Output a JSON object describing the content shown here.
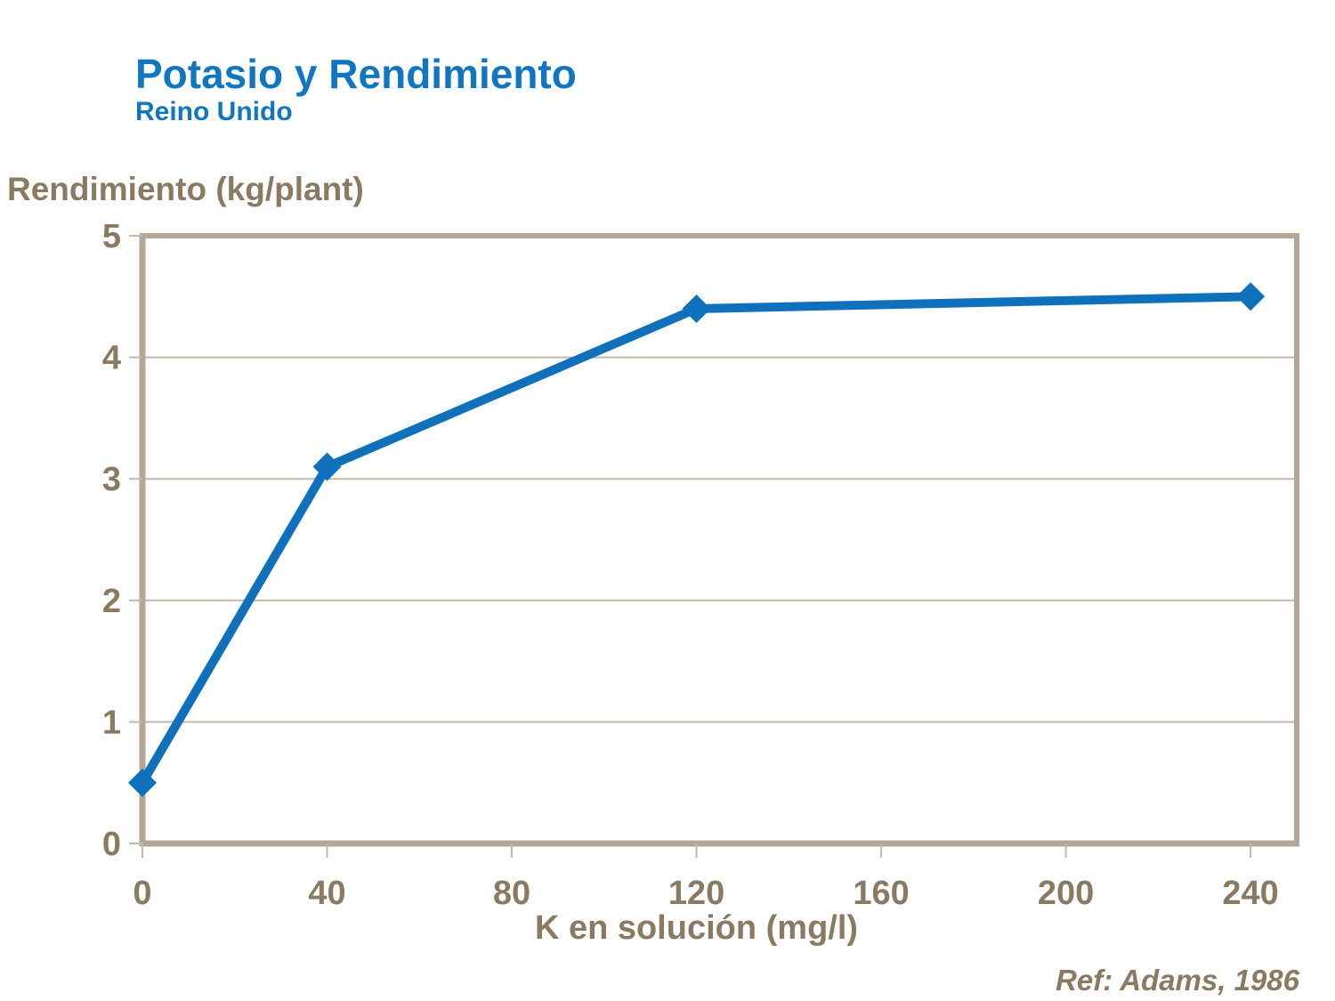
{
  "header": {
    "title": "Potasio y Rendimiento",
    "subtitle": "Reino Unido"
  },
  "footer": {
    "reference": "Ref: Adams, 1986"
  },
  "chart_data": {
    "type": "line",
    "title": "Potasio y Rendimiento",
    "subtitle": "Reino Unido",
    "xlabel": "K en solución (mg/l)",
    "ylabel": "Rendimiento (kg/plant)",
    "reference": "Ref: Adams, 1986",
    "series": [
      {
        "name": "Rendimiento",
        "x": [
          0,
          40,
          120,
          240
        ],
        "y": [
          0.5,
          3.1,
          4.4,
          4.5
        ]
      }
    ],
    "xticks": [
      0,
      40,
      80,
      120,
      160,
      200,
      240
    ],
    "yticks": [
      0,
      1,
      2,
      3,
      4,
      5
    ],
    "xlim": [
      0,
      250
    ],
    "ylim": [
      0,
      5
    ],
    "grid": "horizontal-only",
    "legend": "none",
    "marker": "diamond",
    "colors": {
      "line": "#0F70BC",
      "title_blue": "#1176C1",
      "axis_text_brown": "#8A7A62",
      "frame": "#B3A79A",
      "gridline": "#C2B7A9",
      "background": "#FFFFFF"
    }
  }
}
